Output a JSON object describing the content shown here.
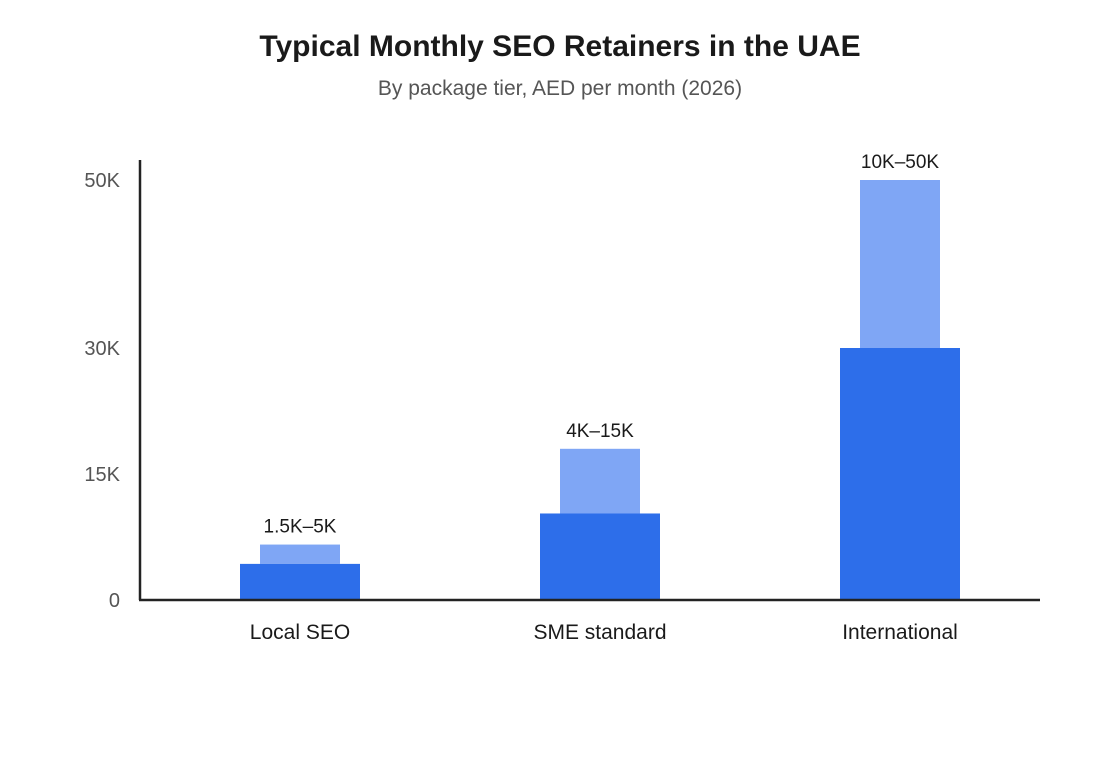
{
  "chart_data": {
    "type": "bar",
    "title": "Typical Monthly SEO Retainers in the UAE",
    "subtitle": "By package tier, AED per month (2026)",
    "categories": [
      "Local SEO",
      "SME standard",
      "International"
    ],
    "series": [
      {
        "values": [
          4300,
          10300,
          30000
        ],
        "color": "#2d6eea"
      },
      {
        "values": [
          6600,
          18000,
          50000
        ],
        "color": "#7fa6f5"
      }
    ],
    "data_labels": [
      "1.5K–5K",
      "4K–15K",
      "10K–50K"
    ],
    "y_ticks": [
      {
        "value": 0,
        "label": "0"
      },
      {
        "value": 15000,
        "label": "15K"
      },
      {
        "value": 30000,
        "label": "30K"
      },
      {
        "value": 50000,
        "label": "50K"
      }
    ],
    "ylim": [
      0,
      50000
    ],
    "grid": false,
    "legend": "none"
  }
}
